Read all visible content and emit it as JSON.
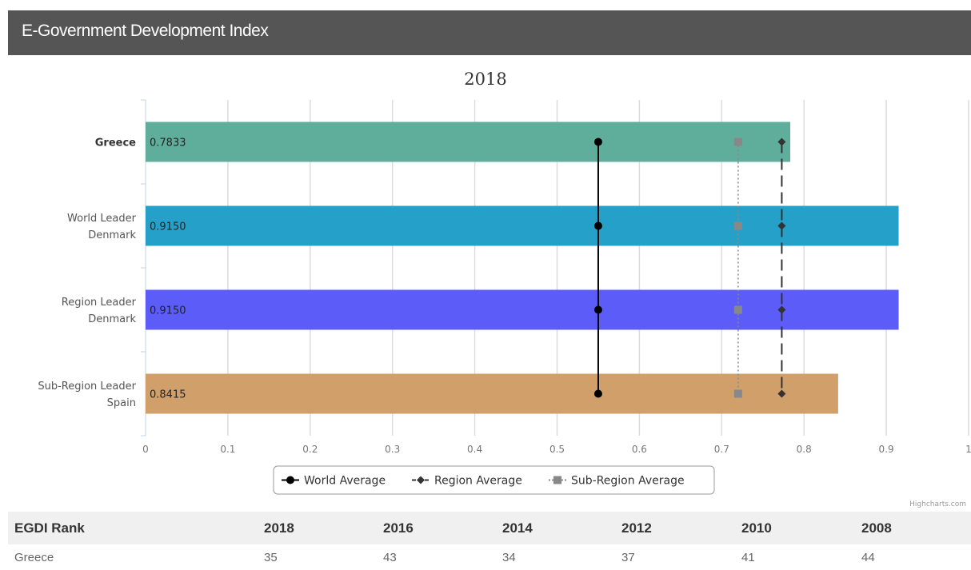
{
  "header": {
    "title": "E-Government Development Index"
  },
  "chart_data": {
    "type": "bar",
    "title": "2018",
    "categories": [
      [
        "Greece"
      ],
      [
        "World Leader",
        "Denmark"
      ],
      [
        "Region Leader",
        "Denmark"
      ],
      [
        "Sub-Region Leader",
        "Spain"
      ]
    ],
    "values": [
      0.7833,
      0.915,
      0.915,
      0.8415
    ],
    "value_labels": [
      "0.7833",
      "0.9150",
      "0.9150",
      "0.8415"
    ],
    "bar_colors": [
      "#5fae9b",
      "#25a0c8",
      "#5c5cf8",
      "#d1a06a"
    ],
    "x_ticks": [
      "0",
      "0.1",
      "0.2",
      "0.3",
      "0.4",
      "0.5",
      "0.6",
      "0.7",
      "0.8",
      "0.9",
      "1"
    ],
    "xlim": [
      0,
      1
    ],
    "grid": true,
    "series": [
      {
        "name": "World Average",
        "value": 0.55,
        "color": "#000000",
        "marker": "circle",
        "line": "solid"
      },
      {
        "name": "Region Average",
        "value": 0.773,
        "color": "#333333",
        "marker": "diamond",
        "line": "dashed"
      },
      {
        "name": "Sub-Region Average",
        "value": 0.72,
        "color": "#888888",
        "marker": "square",
        "line": "dotted"
      }
    ],
    "legend_position": "bottom-center",
    "credits": "Highcharts.com"
  },
  "rank_table": {
    "headers": [
      "EGDI Rank",
      "2018",
      "2016",
      "2014",
      "2012",
      "2010",
      "2008"
    ],
    "rows": [
      [
        "Greece",
        "35",
        "43",
        "34",
        "37",
        "41",
        "44"
      ]
    ]
  }
}
